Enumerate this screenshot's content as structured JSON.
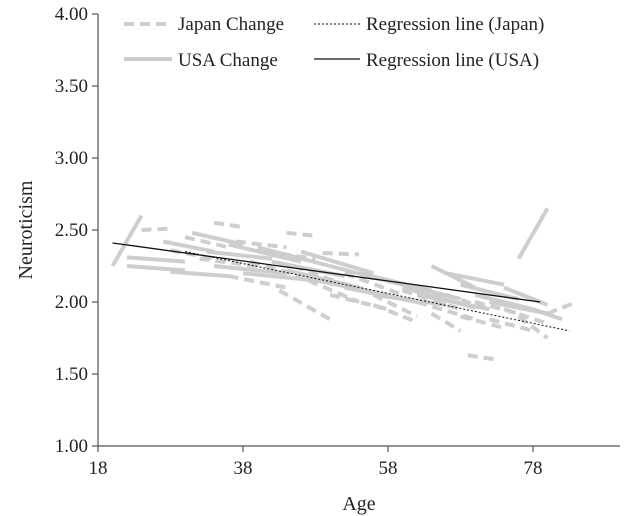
{
  "chart_data": {
    "type": "line",
    "xlabel": "Age",
    "ylabel": "Neuroticism",
    "xlim": [
      18,
      90
    ],
    "ylim": [
      1.0,
      4.0
    ],
    "x_ticks": [
      "18",
      "38",
      "58",
      "78"
    ],
    "y_ticks": [
      "1.00",
      "1.50",
      "2.00",
      "2.50",
      "3.00",
      "3.50",
      "4.00"
    ],
    "legend": {
      "placement": "top",
      "entries": [
        {
          "label": "Japan Change",
          "style": "dashed-thick"
        },
        {
          "label": "Regression line (Japan)",
          "style": "dotted-thin"
        },
        {
          "label": "USA Change",
          "style": "solid-thick"
        },
        {
          "label": "Regression line (USA)",
          "style": "solid-thin"
        }
      ]
    },
    "colors": {
      "change": "#cccccc",
      "regression": "#111111",
      "axis": "#555555"
    },
    "regression_lines": [
      {
        "name": "Regression line (Japan)",
        "x": [
          30,
          83
        ],
        "y": [
          2.35,
          1.8
        ],
        "dash": true
      },
      {
        "name": "Regression line (USA)",
        "x": [
          20,
          79
        ],
        "y": [
          2.41,
          2.0
        ],
        "dash": false
      }
    ],
    "series": [
      {
        "name": "USA Change",
        "segments": [
          [
            [
              20,
              2.25
            ],
            [
              24,
              2.6
            ]
          ],
          [
            [
              22,
              2.31
            ],
            [
              30,
              2.28
            ]
          ],
          [
            [
              22,
              2.25
            ],
            [
              30,
              2.22
            ]
          ],
          [
            [
              27,
              2.42
            ],
            [
              34,
              2.35
            ]
          ],
          [
            [
              28,
              2.21
            ],
            [
              36,
              2.18
            ]
          ],
          [
            [
              31,
              2.48
            ],
            [
              38,
              2.4
            ]
          ],
          [
            [
              33,
              2.35
            ],
            [
              42,
              2.3
            ]
          ],
          [
            [
              34,
              2.25
            ],
            [
              44,
              2.2
            ]
          ],
          [
            [
              36,
              2.4
            ],
            [
              46,
              2.28
            ]
          ],
          [
            [
              38,
              2.2
            ],
            [
              48,
              2.15
            ]
          ],
          [
            [
              40,
              2.38
            ],
            [
              50,
              2.25
            ]
          ],
          [
            [
              42,
              2.28
            ],
            [
              52,
              2.18
            ]
          ],
          [
            [
              44,
              2.22
            ],
            [
              54,
              2.1
            ]
          ],
          [
            [
              46,
              2.35
            ],
            [
              56,
              2.2
            ]
          ],
          [
            [
              48,
              2.15
            ],
            [
              58,
              2.05
            ]
          ],
          [
            [
              50,
              2.25
            ],
            [
              60,
              2.12
            ]
          ],
          [
            [
              52,
              2.1
            ],
            [
              62,
              2.0
            ]
          ],
          [
            [
              54,
              2.2
            ],
            [
              64,
              2.08
            ]
          ],
          [
            [
              56,
              2.05
            ],
            [
              66,
              1.98
            ]
          ],
          [
            [
              58,
              2.15
            ],
            [
              68,
              2.02
            ]
          ],
          [
            [
              60,
              2.1
            ],
            [
              70,
              1.96
            ]
          ],
          [
            [
              62,
              2.05
            ],
            [
              72,
              1.95
            ]
          ],
          [
            [
              64,
              2.25
            ],
            [
              70,
              2.1
            ]
          ],
          [
            [
              66,
              2.2
            ],
            [
              74,
              2.12
            ]
          ],
          [
            [
              68,
              2.12
            ],
            [
              76,
              2.02
            ]
          ],
          [
            [
              70,
              2.05
            ],
            [
              78,
              1.95
            ]
          ],
          [
            [
              72,
              2.0
            ],
            [
              80,
              1.92
            ]
          ],
          [
            [
              74,
              2.1
            ],
            [
              80,
              1.98
            ]
          ],
          [
            [
              76,
              2.3
            ],
            [
              80,
              2.65
            ]
          ],
          [
            [
              78,
              1.95
            ],
            [
              82,
              1.88
            ]
          ]
        ]
      },
      {
        "name": "Japan Change",
        "segments": [
          [
            [
              24,
              2.5
            ],
            [
              28,
              2.51
            ]
          ],
          [
            [
              28,
              2.36
            ],
            [
              34,
              2.3
            ]
          ],
          [
            [
              30,
              2.45
            ],
            [
              36,
              2.38
            ]
          ],
          [
            [
              32,
              2.3
            ],
            [
              40,
              2.25
            ]
          ],
          [
            [
              34,
              2.55
            ],
            [
              38,
              2.52
            ]
          ],
          [
            [
              36,
              2.18
            ],
            [
              44,
              2.1
            ]
          ],
          [
            [
              37,
              2.42
            ],
            [
              44,
              2.38
            ]
          ],
          [
            [
              39,
              2.28
            ],
            [
              46,
              2.18
            ]
          ],
          [
            [
              41,
              2.35
            ],
            [
              48,
              2.3
            ]
          ],
          [
            [
              43,
              2.08
            ],
            [
              50,
              1.88
            ]
          ],
          [
            [
              45,
              2.25
            ],
            [
              52,
              2.12
            ]
          ],
          [
            [
              47,
              2.15
            ],
            [
              54,
              2.0
            ]
          ],
          [
            [
              49,
              2.34
            ],
            [
              54,
              2.33
            ]
          ],
          [
            [
              50,
              2.05
            ],
            [
              58,
              1.95
            ]
          ],
          [
            [
              52,
              2.2
            ],
            [
              60,
              2.05
            ]
          ],
          [
            [
              54,
              2.1
            ],
            [
              62,
              1.9
            ]
          ],
          [
            [
              56,
              1.98
            ],
            [
              62,
              1.86
            ]
          ],
          [
            [
              58,
              2.15
            ],
            [
              66,
              2.02
            ]
          ],
          [
            [
              60,
              2.08
            ],
            [
              68,
              1.95
            ]
          ],
          [
            [
              62,
              2.0
            ],
            [
              70,
              1.88
            ]
          ],
          [
            [
              64,
              1.92
            ],
            [
              68,
              1.8
            ]
          ],
          [
            [
              66,
              2.05
            ],
            [
              72,
              1.95
            ]
          ],
          [
            [
              68,
              1.9
            ],
            [
              74,
              1.82
            ]
          ],
          [
            [
              69,
              1.63
            ],
            [
              73,
              1.6
            ]
          ],
          [
            [
              70,
              2.0
            ],
            [
              76,
              1.92
            ]
          ],
          [
            [
              72,
              1.88
            ],
            [
              78,
              1.8
            ]
          ],
          [
            [
              74,
              1.95
            ],
            [
              80,
              1.85
            ]
          ],
          [
            [
              76,
              1.9
            ],
            [
              80,
              1.75
            ]
          ],
          [
            [
              80,
              1.92
            ],
            [
              84,
              2.0
            ]
          ],
          [
            [
              44,
              2.48
            ],
            [
              48,
              2.46
            ]
          ]
        ]
      }
    ]
  }
}
